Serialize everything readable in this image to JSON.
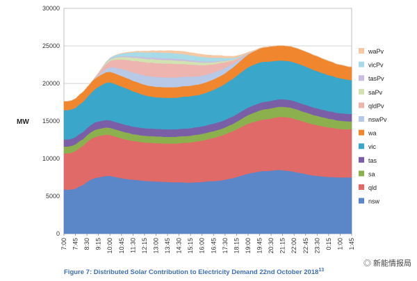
{
  "chart_data": {
    "type": "area",
    "stacked": true,
    "ylabel": "MW",
    "ylim": [
      0,
      30000
    ],
    "yticks": [
      "0",
      "5000",
      "10000",
      "15000",
      "20000",
      "25000",
      "30000"
    ],
    "x": [
      "7:00",
      "7:15",
      "7:30",
      "7:45",
      "8:00",
      "8:15",
      "8:30",
      "8:45",
      "9:00",
      "9:15",
      "9:30",
      "9:45",
      "10:00",
      "10:15",
      "10:30",
      "10:45",
      "11:00",
      "11:15",
      "11:30",
      "11:45",
      "12:00",
      "12:15",
      "12:30",
      "12:45",
      "13:00",
      "13:15",
      "13:30",
      "13:45",
      "14:00",
      "14:15",
      "14:30",
      "14:45",
      "15:00",
      "15:15",
      "15:30",
      "15:45",
      "16:00",
      "16:15",
      "16:30",
      "16:45",
      "17:00",
      "17:15",
      "17:30",
      "17:45",
      "18:00",
      "18:15",
      "18:30",
      "18:45",
      "19:00",
      "19:15",
      "19:30",
      "19:45",
      "20:00",
      "20:15",
      "20:30",
      "20:45",
      "21:00",
      "21:15",
      "21:30",
      "21:45",
      "22:00",
      "22:15",
      "22:30",
      "22:45",
      "23:00",
      "23:15",
      "23:30",
      "23:45",
      "0:00",
      "0:15",
      "0:30",
      "0:45",
      "1:00",
      "1:15",
      "1:30",
      "1:45"
    ],
    "xticks": [
      "7:00",
      "7:45",
      "8:30",
      "9:15",
      "10:00",
      "10:45",
      "11:30",
      "12:15",
      "13:00",
      "13:45",
      "14:30",
      "15:15",
      "16:00",
      "16:45",
      "17:30",
      "18:15",
      "19:00",
      "19:45",
      "20:30",
      "21:15",
      "22:00",
      "22:45",
      "23:30",
      "0:15",
      "1:00",
      "1:45"
    ],
    "grid": true,
    "legend_position": "right",
    "series": [
      {
        "name": "nsw",
        "color": "#5b86c8",
        "values": [
          5900,
          5850,
          5900,
          6000,
          6300,
          6500,
          6900,
          7200,
          7400,
          7500,
          7600,
          7700,
          7700,
          7600,
          7500,
          7400,
          7300,
          7250,
          7200,
          7150,
          7100,
          7050,
          7000,
          7000,
          6950,
          6950,
          6900,
          6900,
          6850,
          6850,
          6850,
          6850,
          6800,
          6800,
          6850,
          6850,
          6900,
          6950,
          7000,
          7000,
          7050,
          7100,
          7200,
          7300,
          7400,
          7550,
          7700,
          7850,
          8000,
          8100,
          8200,
          8300,
          8350,
          8350,
          8400,
          8450,
          8500,
          8450,
          8400,
          8350,
          8250,
          8150,
          8050,
          7950,
          7850,
          7750,
          7700,
          7650,
          7600,
          7550,
          7550,
          7500,
          7500,
          7500,
          7500,
          7500
        ]
      },
      {
        "name": "qld",
        "color": "#e06a68",
        "values": [
          4800,
          4850,
          4900,
          5000,
          5100,
          5200,
          5300,
          5400,
          5450,
          5500,
          5500,
          5500,
          5450,
          5400,
          5350,
          5300,
          5250,
          5200,
          5150,
          5150,
          5100,
          5100,
          5100,
          5100,
          5100,
          5100,
          5100,
          5100,
          5150,
          5150,
          5200,
          5250,
          5300,
          5350,
          5400,
          5450,
          5500,
          5550,
          5650,
          5750,
          5850,
          5950,
          6050,
          6150,
          6250,
          6350,
          6450,
          6550,
          6650,
          6700,
          6750,
          6800,
          6850,
          6900,
          6950,
          7000,
          7050,
          7100,
          7100,
          7100,
          7050,
          7000,
          6950,
          6900,
          6850,
          6800,
          6750,
          6700,
          6650,
          6600,
          6550,
          6500,
          6450,
          6400,
          6400,
          6400
        ]
      },
      {
        "name": "sa",
        "color": "#8db04f",
        "values": [
          900,
          900,
          900,
          900,
          900,
          900,
          900,
          900,
          950,
          950,
          950,
          950,
          950,
          950,
          950,
          950,
          950,
          950,
          900,
          900,
          900,
          900,
          900,
          900,
          900,
          900,
          900,
          900,
          900,
          900,
          900,
          900,
          900,
          900,
          900,
          900,
          900,
          900,
          900,
          900,
          900,
          900,
          900,
          950,
          950,
          1000,
          1050,
          1100,
          1150,
          1200,
          1250,
          1300,
          1350,
          1350,
          1350,
          1350,
          1350,
          1350,
          1350,
          1350,
          1350,
          1350,
          1300,
          1300,
          1300,
          1250,
          1250,
          1200,
          1200,
          1150,
          1150,
          1100,
          1100,
          1100,
          1050,
          1050
        ]
      },
      {
        "name": "tas",
        "color": "#7a5fa6",
        "values": [
          950,
          950,
          950,
          950,
          950,
          950,
          950,
          950,
          1000,
          1000,
          1000,
          1000,
          1000,
          1000,
          1000,
          1000,
          1000,
          1000,
          1000,
          1000,
          1000,
          1000,
          1000,
          1000,
          1000,
          1000,
          1000,
          1000,
          1000,
          1000,
          1000,
          1000,
          1000,
          1000,
          1000,
          1000,
          1000,
          1000,
          1000,
          1000,
          1000,
          1000,
          1000,
          1000,
          1000,
          1000,
          1000,
          1000,
          1000,
          1000,
          1000,
          1000,
          1000,
          1000,
          1000,
          1000,
          1000,
          1000,
          1000,
          1000,
          1000,
          1000,
          1000,
          1000,
          1000,
          1000,
          1000,
          1000,
          1000,
          1000,
          1000,
          1000,
          1000,
          1000,
          1000,
          1000
        ]
      },
      {
        "name": "vic",
        "color": "#3aa6c9",
        "values": [
          3900,
          3900,
          3900,
          3900,
          3950,
          4000,
          4100,
          4250,
          4400,
          4600,
          4800,
          4950,
          5050,
          5050,
          5000,
          4950,
          4900,
          4800,
          4700,
          4600,
          4500,
          4400,
          4300,
          4250,
          4200,
          4200,
          4200,
          4200,
          4200,
          4200,
          4200,
          4250,
          4250,
          4250,
          4250,
          4250,
          4300,
          4350,
          4400,
          4500,
          4600,
          4700,
          4800,
          4900,
          5000,
          5100,
          5200,
          5300,
          5350,
          5400,
          5400,
          5400,
          5350,
          5300,
          5250,
          5200,
          5150,
          5150,
          5150,
          5150,
          5150,
          5150,
          5150,
          5100,
          5050,
          5000,
          4950,
          4900,
          4850,
          4800,
          4750,
          4700,
          4650,
          4600,
          4550,
          4500
        ]
      },
      {
        "name": "wa",
        "color": "#f0862e",
        "values": [
          1200,
          1200,
          1200,
          1250,
          1300,
          1350,
          1350,
          1400,
          1400,
          1400,
          1400,
          1400,
          1400,
          1400,
          1400,
          1400,
          1400,
          1400,
          1400,
          1400,
          1400,
          1400,
          1400,
          1400,
          1400,
          1400,
          1400,
          1400,
          1400,
          1400,
          1400,
          1400,
          1400,
          1400,
          1400,
          1400,
          1400,
          1400,
          1400,
          1400,
          1400,
          1400,
          1400,
          1450,
          1500,
          1550,
          1600,
          1650,
          1700,
          1750,
          1800,
          1850,
          1900,
          1950,
          2000,
          2000,
          2000,
          2000,
          2000,
          2000,
          2000,
          2000,
          2000,
          2000,
          2000,
          2000,
          2000,
          1950,
          1900,
          1900,
          1850,
          1800,
          1800,
          1800,
          1750,
          1750
        ]
      },
      {
        "name": "nswPv",
        "color": "#b7c9e6",
        "values": [
          0,
          0,
          0,
          0,
          0,
          0,
          0,
          0,
          50,
          150,
          300,
          450,
          600,
          750,
          850,
          950,
          1000,
          1050,
          1100,
          1150,
          1200,
          1250,
          1250,
          1300,
          1300,
          1300,
          1300,
          1300,
          1300,
          1300,
          1300,
          1250,
          1250,
          1200,
          1150,
          1100,
          1050,
          1000,
          950,
          900,
          850,
          800,
          700,
          600,
          500,
          400,
          300,
          200,
          100,
          50,
          0,
          0,
          0,
          0,
          0,
          0,
          0,
          0,
          0,
          0,
          0,
          0,
          0,
          0,
          0,
          0,
          0,
          0,
          0,
          0,
          0,
          0,
          0,
          0,
          0,
          0
        ]
      },
      {
        "name": "qldPv",
        "color": "#edb4b0",
        "values": [
          0,
          0,
          0,
          0,
          0,
          0,
          0,
          0,
          100,
          250,
          450,
          650,
          850,
          1000,
          1150,
          1250,
          1350,
          1450,
          1550,
          1650,
          1700,
          1750,
          1800,
          1850,
          1850,
          1850,
          1850,
          1850,
          1850,
          1800,
          1750,
          1700,
          1650,
          1600,
          1550,
          1500,
          1400,
          1300,
          1200,
          1100,
          1000,
          900,
          750,
          600,
          450,
          300,
          200,
          100,
          50,
          0,
          0,
          0,
          0,
          0,
          0,
          0,
          0,
          0,
          0,
          0,
          0,
          0,
          0,
          0,
          0,
          0,
          0,
          0,
          0,
          0,
          0,
          0,
          0,
          0,
          0,
          0
        ]
      },
      {
        "name": "saPv",
        "color": "#d2e3b1",
        "values": [
          0,
          0,
          0,
          0,
          0,
          0,
          0,
          0,
          0,
          30,
          80,
          130,
          180,
          230,
          280,
          320,
          360,
          390,
          420,
          440,
          450,
          460,
          470,
          470,
          470,
          470,
          470,
          470,
          460,
          450,
          440,
          430,
          420,
          400,
          380,
          360,
          340,
          320,
          300,
          270,
          240,
          210,
          180,
          140,
          100,
          60,
          30,
          10,
          0,
          0,
          0,
          0,
          0,
          0,
          0,
          0,
          0,
          0,
          0,
          0,
          0,
          0,
          0,
          0,
          0,
          0,
          0,
          0,
          0,
          0,
          0,
          0,
          0,
          0,
          0,
          0
        ]
      },
      {
        "name": "tasPv",
        "color": "#c9bedf",
        "values": [
          0,
          0,
          0,
          0,
          0,
          0,
          0,
          0,
          0,
          10,
          20,
          40,
          60,
          80,
          100,
          120,
          140,
          160,
          180,
          190,
          200,
          210,
          220,
          220,
          230,
          230,
          230,
          230,
          230,
          220,
          220,
          210,
          200,
          190,
          180,
          170,
          160,
          150,
          140,
          120,
          100,
          80,
          60,
          40,
          20,
          10,
          0,
          0,
          0,
          0,
          0,
          0,
          0,
          0,
          0,
          0,
          0,
          0,
          0,
          0,
          0,
          0,
          0,
          0,
          0,
          0,
          0,
          0,
          0,
          0,
          0,
          0,
          0,
          0,
          0,
          0
        ]
      },
      {
        "name": "vicPv",
        "color": "#a7dbe8",
        "values": [
          0,
          0,
          0,
          0,
          0,
          0,
          0,
          0,
          0,
          20,
          60,
          100,
          160,
          220,
          280,
          340,
          400,
          460,
          520,
          560,
          600,
          640,
          680,
          700,
          720,
          740,
          740,
          740,
          740,
          740,
          720,
          700,
          680,
          660,
          640,
          620,
          600,
          560,
          520,
          480,
          440,
          400,
          340,
          280,
          220,
          160,
          100,
          50,
          20,
          0,
          0,
          0,
          0,
          0,
          0,
          0,
          0,
          0,
          0,
          0,
          0,
          0,
          0,
          0,
          0,
          0,
          0,
          0,
          0,
          0,
          0,
          0,
          0,
          0,
          0,
          0
        ]
      },
      {
        "name": "waPv",
        "color": "#f6c8a3",
        "values": [
          0,
          0,
          0,
          0,
          0,
          0,
          0,
          0,
          0,
          0,
          0,
          0,
          0,
          0,
          20,
          40,
          60,
          80,
          100,
          120,
          140,
          160,
          180,
          200,
          220,
          240,
          260,
          280,
          300,
          320,
          330,
          340,
          350,
          350,
          350,
          350,
          340,
          330,
          320,
          310,
          300,
          280,
          260,
          240,
          220,
          200,
          180,
          160,
          140,
          120,
          100,
          80,
          60,
          40,
          20,
          0,
          0,
          0,
          0,
          0,
          0,
          0,
          0,
          0,
          0,
          0,
          0,
          0,
          0,
          0,
          0,
          0,
          0,
          0,
          0,
          0
        ]
      }
    ]
  },
  "caption": "Figure 7: Distributed Solar Contribution to Electricity Demand 22nd October 2018",
  "caption_sup": "13",
  "watermark": "新能情报局"
}
